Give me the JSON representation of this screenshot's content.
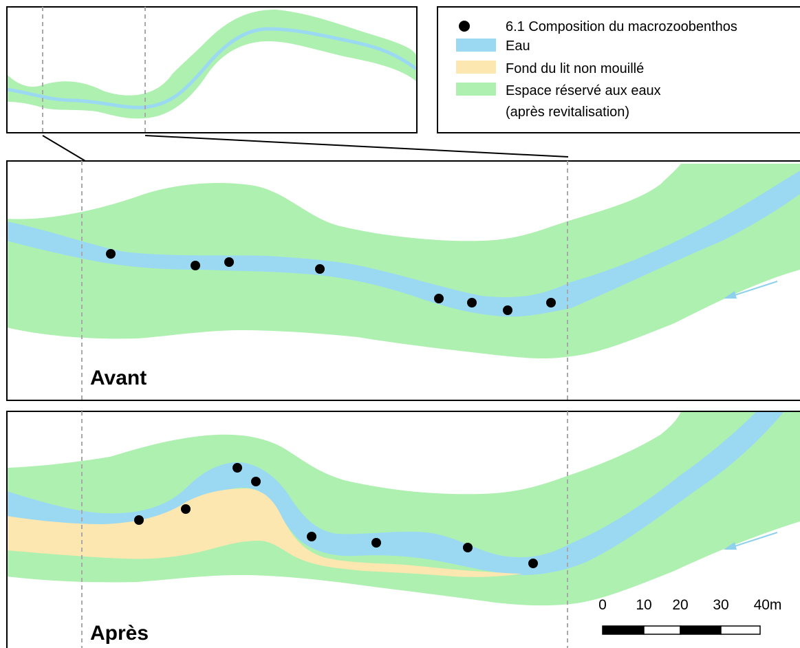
{
  "legend": {
    "items": [
      {
        "label": "6.1 Composition du macrozoobenthos",
        "symbol": "dot",
        "color": "#000000"
      },
      {
        "label": "Eau",
        "symbol": "rect",
        "color": "#9bd9f2"
      },
      {
        "label": "Fond du lit non mouillé",
        "symbol": "rect",
        "color": "#fde7b0"
      },
      {
        "label": "Espace réservé aux eaux",
        "label2": "(après revitalisation)",
        "symbol": "rect",
        "color": "#aef0b0"
      }
    ]
  },
  "panels": {
    "before": {
      "label": "Avant"
    },
    "after": {
      "label": "Après"
    }
  },
  "scale_bar": {
    "ticks": [
      "0",
      "10",
      "20",
      "30",
      "40m"
    ]
  },
  "colors": {
    "water": "#9bd9f2",
    "dry_bed": "#fde7b0",
    "reserved_space": "#aef0b0",
    "sample_point": "#000000",
    "flow_arrow": "#8fd0ec",
    "guide_line": "#a8a8a8"
  },
  "icons": {
    "flow": "flow-direction-arrow-icon",
    "sample": "sample-point-icon"
  }
}
